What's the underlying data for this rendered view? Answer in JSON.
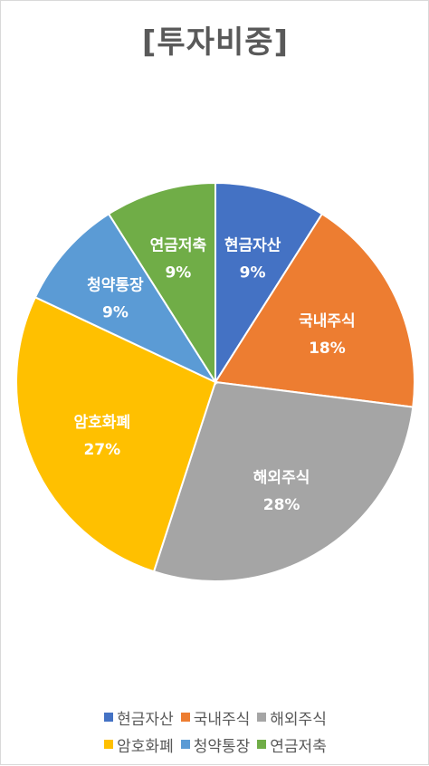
{
  "chart_data": {
    "type": "pie",
    "title": "[투자비중]",
    "categories": [
      "현금자산",
      "국내주식",
      "해외주식",
      "암호화폐",
      "청약통장",
      "연금저축"
    ],
    "values": [
      9,
      18,
      28,
      27,
      9,
      9
    ],
    "value_labels": [
      "9%",
      "18%",
      "28%",
      "27%",
      "9%",
      "9%"
    ],
    "colors": [
      "#4472C4",
      "#ED7D31",
      "#A5A5A5",
      "#FFC000",
      "#5B9BD5",
      "#70AD47"
    ],
    "legend_placement": "bottom"
  }
}
